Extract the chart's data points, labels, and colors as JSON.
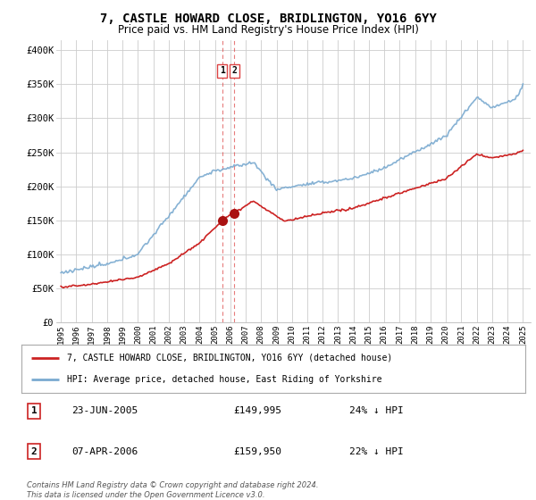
{
  "title": "7, CASTLE HOWARD CLOSE, BRIDLINGTON, YO16 6YY",
  "subtitle": "Price paid vs. HM Land Registry's House Price Index (HPI)",
  "title_fontsize": 10,
  "subtitle_fontsize": 8.5,
  "ylabel_ticks": [
    "£0",
    "£50K",
    "£100K",
    "£150K",
    "£200K",
    "£250K",
    "£300K",
    "£350K",
    "£400K"
  ],
  "ytick_values": [
    0,
    50000,
    100000,
    150000,
    200000,
    250000,
    300000,
    350000,
    400000
  ],
  "ylim": [
    0,
    415000
  ],
  "xlim_start": 1994.7,
  "xlim_end": 2025.5,
  "background_color": "#ffffff",
  "grid_color": "#cccccc",
  "hpi_color": "#7aaad0",
  "house_color": "#cc2222",
  "sale1_x": 2005.47,
  "sale1_y": 149995,
  "sale2_x": 2006.27,
  "sale2_y": 159950,
  "vline_color": "#dd4444",
  "marker_color": "#aa1111",
  "legend_house": "7, CASTLE HOWARD CLOSE, BRIDLINGTON, YO16 6YY (detached house)",
  "legend_hpi": "HPI: Average price, detached house, East Riding of Yorkshire",
  "table_rows": [
    {
      "num": "1",
      "date": "23-JUN-2005",
      "price": "£149,995",
      "hpi": "24% ↓ HPI"
    },
    {
      "num": "2",
      "date": "07-APR-2006",
      "price": "£159,950",
      "hpi": "22% ↓ HPI"
    }
  ],
  "footer": "Contains HM Land Registry data © Crown copyright and database right 2024.\nThis data is licensed under the Open Government Licence v3.0.",
  "xtick_years": [
    1995,
    1996,
    1997,
    1998,
    1999,
    2000,
    2001,
    2002,
    2003,
    2004,
    2005,
    2006,
    2007,
    2008,
    2009,
    2010,
    2011,
    2012,
    2013,
    2014,
    2015,
    2016,
    2017,
    2018,
    2019,
    2020,
    2021,
    2022,
    2023,
    2024,
    2025
  ]
}
